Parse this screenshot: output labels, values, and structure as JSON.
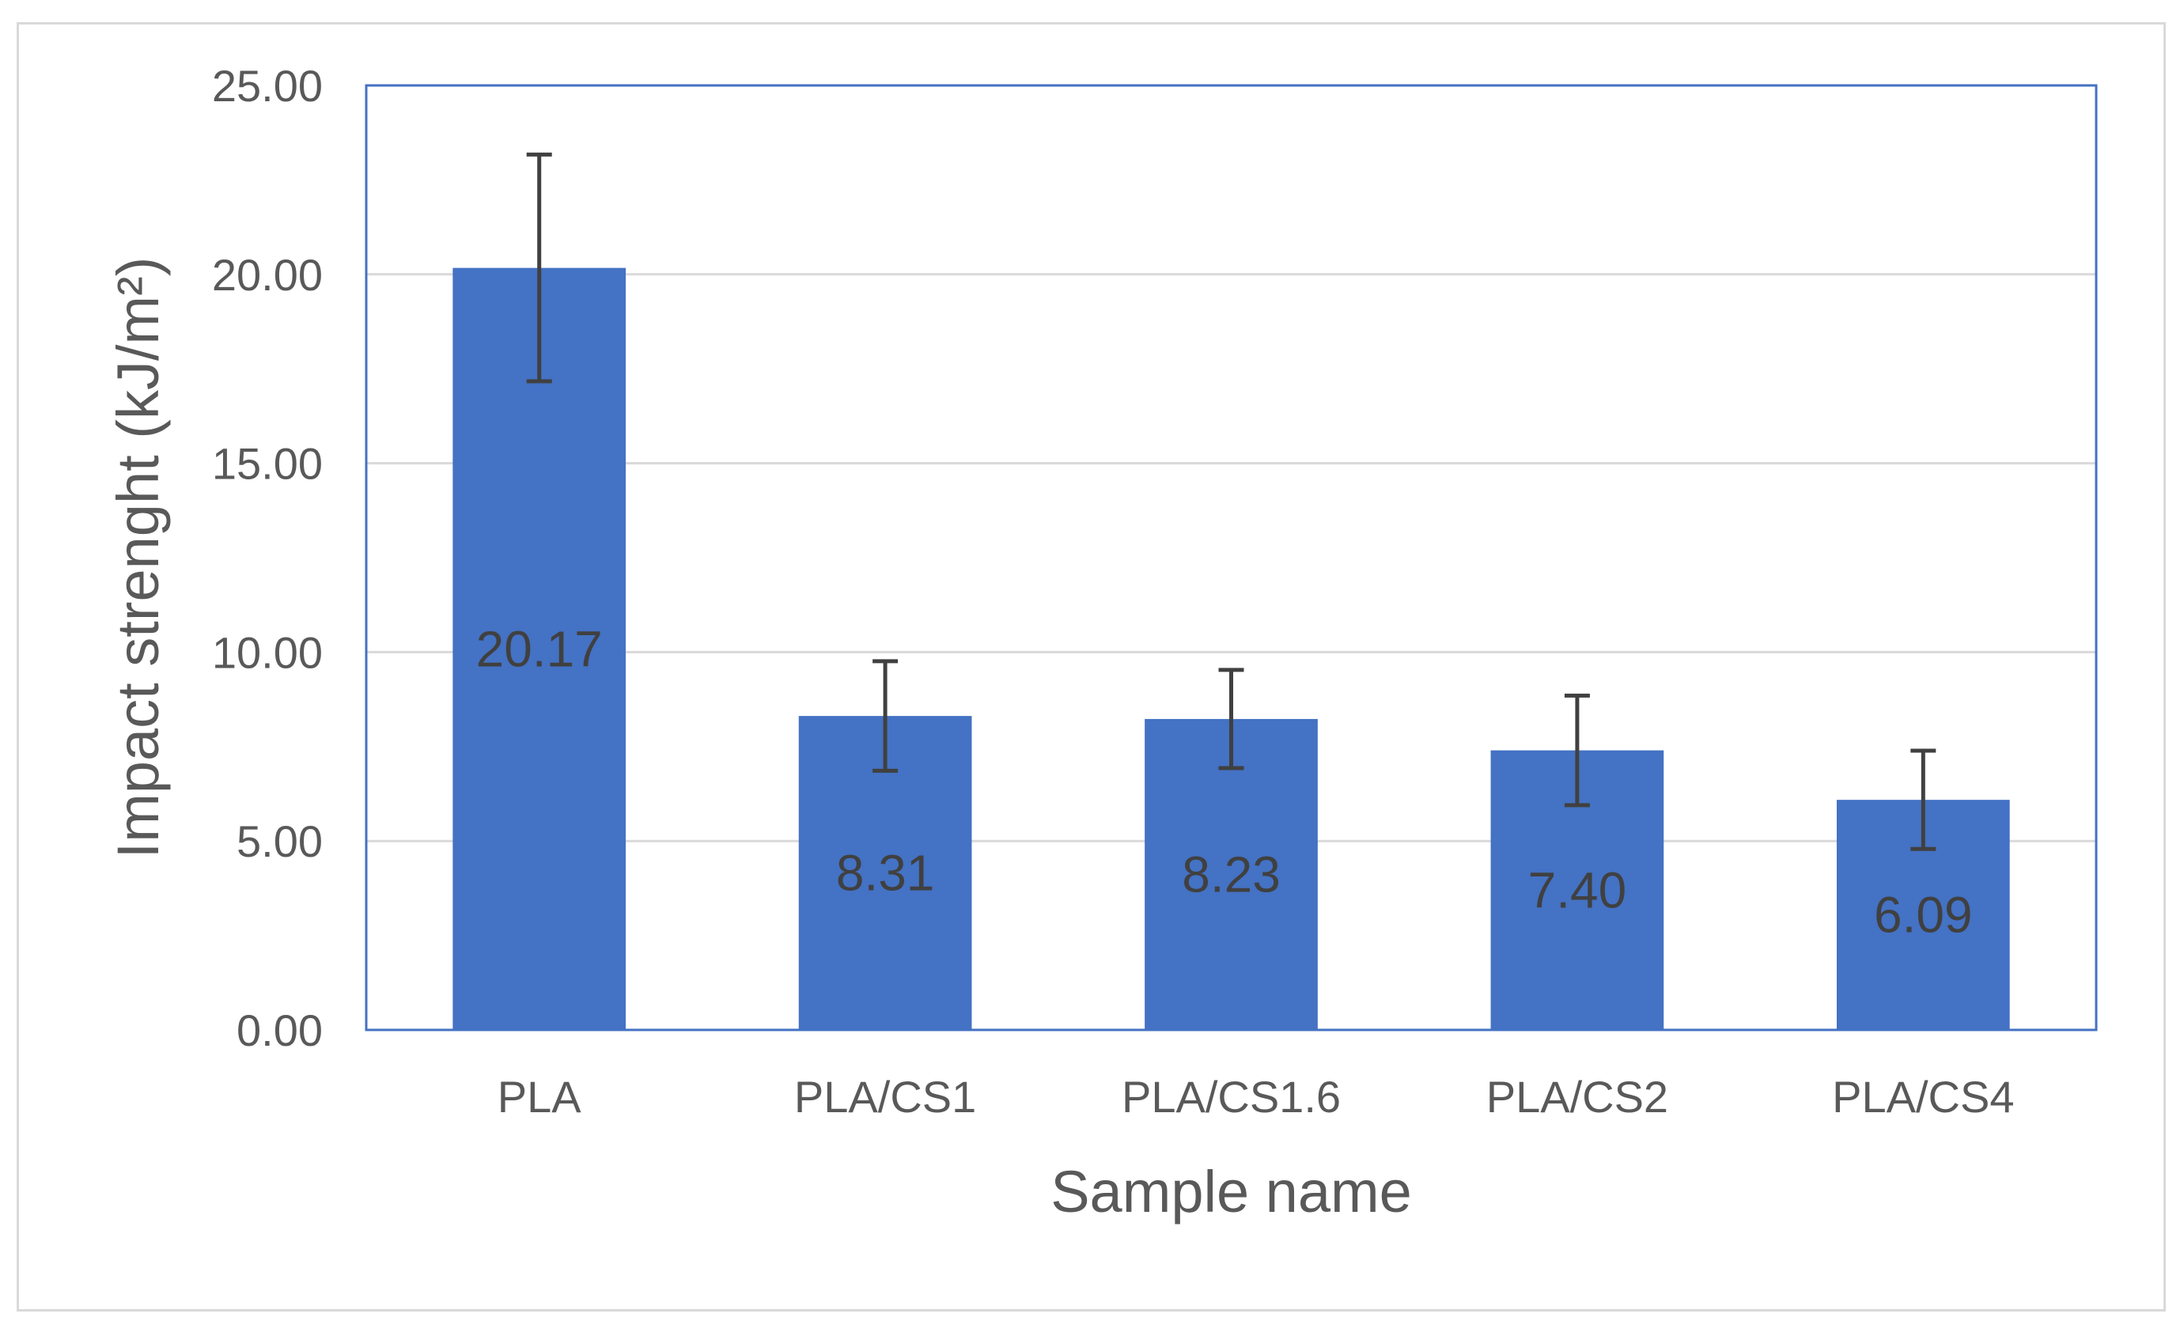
{
  "chart_data": {
    "type": "bar",
    "title": "",
    "xlabel": "Sample name",
    "ylabel": "Impact strenght (kJ/m²)",
    "ylim": [
      0,
      25
    ],
    "yticks": [
      "0.00",
      "5.00",
      "10.00",
      "15.00",
      "20.00",
      "25.00"
    ],
    "grid": true,
    "legend": "none",
    "categories": [
      "PLA",
      "PLA/CS1",
      "PLA/CS1.6",
      "PLA/CS2",
      "PLA/CS4"
    ],
    "values": [
      20.17,
      8.31,
      8.23,
      7.4,
      6.09
    ],
    "value_labels": [
      "20.17",
      "8.31",
      "8.23",
      "7.40",
      "6.09"
    ],
    "errors": [
      3.0,
      1.45,
      1.3,
      1.45,
      1.3
    ],
    "colors": {
      "bar": "#4472c4",
      "plot_border": "#4472c4",
      "grid": "#d9d9d9",
      "error_bar": "#404040"
    }
  }
}
